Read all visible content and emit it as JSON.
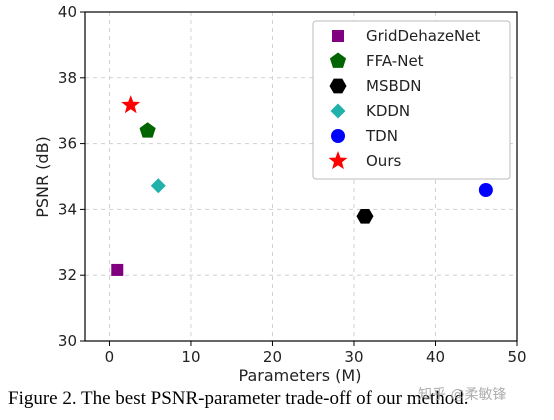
{
  "chart_data": {
    "type": "scatter",
    "xlabel": "Parameters (M)",
    "ylabel": "PSNR (dB)",
    "xlim": [
      -3,
      50
    ],
    "ylim": [
      30,
      40
    ],
    "xticks": [
      0,
      10,
      20,
      30,
      40,
      50
    ],
    "yticks": [
      30,
      32,
      34,
      36,
      38,
      40
    ],
    "grid": true,
    "legend_position": "top-right",
    "series": [
      {
        "name": "GridDehazeNet",
        "marker": "square",
        "color": "#800080",
        "x": 0.96,
        "y": 32.16
      },
      {
        "name": "FFA-Net",
        "marker": "pentagon",
        "color": "#006400",
        "x": 4.68,
        "y": 36.39
      },
      {
        "name": "MSBDN",
        "marker": "hexagon",
        "color": "#000000",
        "x": 31.35,
        "y": 33.79
      },
      {
        "name": "KDDN",
        "marker": "diamond",
        "color": "#20b2aa",
        "x": 5.99,
        "y": 34.72
      },
      {
        "name": "TDN",
        "marker": "circle",
        "color": "#0000ff",
        "x": 46.18,
        "y": 34.59
      },
      {
        "name": "Ours",
        "marker": "star",
        "color": "#ff0000",
        "x": 2.61,
        "y": 37.17
      }
    ]
  },
  "caption": "Figure 2. The best PSNR-parameter trade-off of our method.",
  "watermark": "知乎 @柔敏锋"
}
